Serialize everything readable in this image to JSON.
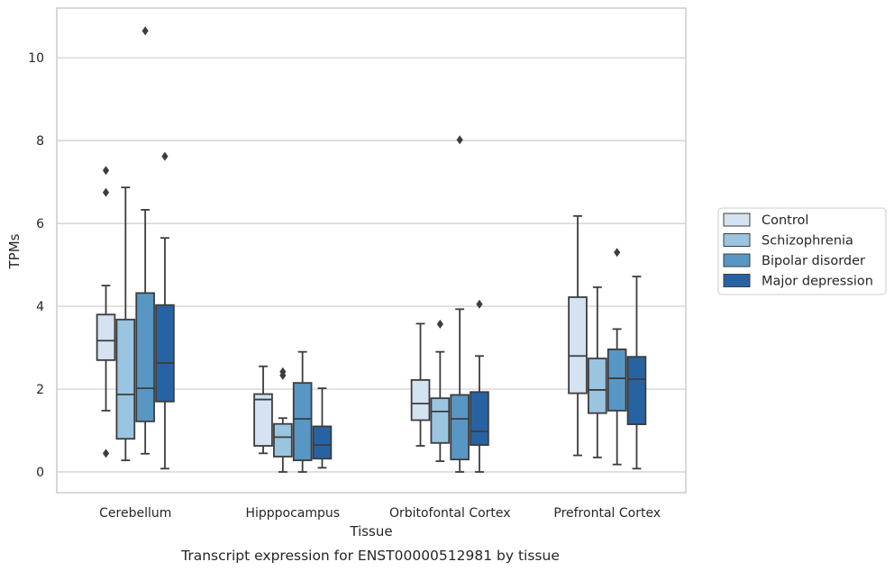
{
  "chart_data": {
    "type": "box",
    "title": "Transcript expression for ENST00000512981 by tissue",
    "xlabel": "Tissue",
    "ylabel": "TPMs",
    "ylim": [
      -0.5,
      11.2
    ],
    "yticks": [
      0,
      2,
      4,
      6,
      8,
      10
    ],
    "grid": "horizontal",
    "legend_position": "right",
    "categories": [
      "Cerebellum",
      "Hipppocampus",
      "Orbitofontal Cortex",
      "Prefrontal Cortex"
    ],
    "series": [
      {
        "name": "Control",
        "color": "#d4e2f1",
        "boxes": [
          {
            "whisker_low": 1.48,
            "q1": 2.7,
            "median": 3.17,
            "q3": 3.8,
            "whisker_high": 4.5,
            "outliers": [
              7.28,
              6.75,
              0.45
            ]
          },
          {
            "whisker_low": 0.45,
            "q1": 0.63,
            "median": 1.75,
            "q3": 1.88,
            "whisker_high": 2.55,
            "outliers": []
          },
          {
            "whisker_low": 0.63,
            "q1": 1.25,
            "median": 1.65,
            "q3": 2.22,
            "whisker_high": 3.58,
            "outliers": []
          },
          {
            "whisker_low": 0.4,
            "q1": 1.9,
            "median": 2.8,
            "q3": 4.22,
            "whisker_high": 6.18,
            "outliers": []
          }
        ]
      },
      {
        "name": "Schizophrenia",
        "color": "#9ac4e0",
        "boxes": [
          {
            "whisker_low": 0.28,
            "q1": 0.8,
            "median": 1.87,
            "q3": 3.68,
            "whisker_high": 6.87,
            "outliers": []
          },
          {
            "whisker_low": 0.0,
            "q1": 0.37,
            "median": 0.84,
            "q3": 1.16,
            "whisker_high": 1.3,
            "outliers": [
              2.42,
              2.33
            ]
          },
          {
            "whisker_low": 0.26,
            "q1": 0.7,
            "median": 1.46,
            "q3": 1.78,
            "whisker_high": 2.9,
            "outliers": [
              3.57
            ]
          },
          {
            "whisker_low": 0.35,
            "q1": 1.42,
            "median": 1.98,
            "q3": 2.74,
            "whisker_high": 4.46,
            "outliers": []
          }
        ]
      },
      {
        "name": "Bipolar disorder",
        "color": "#5896c4",
        "boxes": [
          {
            "whisker_low": 0.44,
            "q1": 1.22,
            "median": 2.02,
            "q3": 4.32,
            "whisker_high": 6.33,
            "outliers": [
              10.65
            ]
          },
          {
            "whisker_low": 0.0,
            "q1": 0.28,
            "median": 1.28,
            "q3": 2.15,
            "whisker_high": 2.9,
            "outliers": []
          },
          {
            "whisker_low": 0.0,
            "q1": 0.3,
            "median": 1.28,
            "q3": 1.86,
            "whisker_high": 3.93,
            "outliers": [
              8.02
            ]
          },
          {
            "whisker_low": 0.18,
            "q1": 1.48,
            "median": 2.26,
            "q3": 2.96,
            "whisker_high": 3.45,
            "outliers": [
              5.3
            ]
          }
        ]
      },
      {
        "name": "Major depression",
        "color": "#2763a3",
        "boxes": [
          {
            "whisker_low": 0.08,
            "q1": 1.7,
            "median": 2.63,
            "q3": 4.03,
            "whisker_high": 5.65,
            "outliers": [
              7.62
            ]
          },
          {
            "whisker_low": 0.1,
            "q1": 0.32,
            "median": 0.65,
            "q3": 1.1,
            "whisker_high": 2.02,
            "outliers": []
          },
          {
            "whisker_low": 0.0,
            "q1": 0.65,
            "median": 0.98,
            "q3": 1.93,
            "whisker_high": 2.8,
            "outliers": [
              4.05
            ]
          },
          {
            "whisker_low": 0.08,
            "q1": 1.15,
            "median": 2.24,
            "q3": 2.78,
            "whisker_high": 4.72,
            "outliers": []
          }
        ]
      }
    ]
  }
}
